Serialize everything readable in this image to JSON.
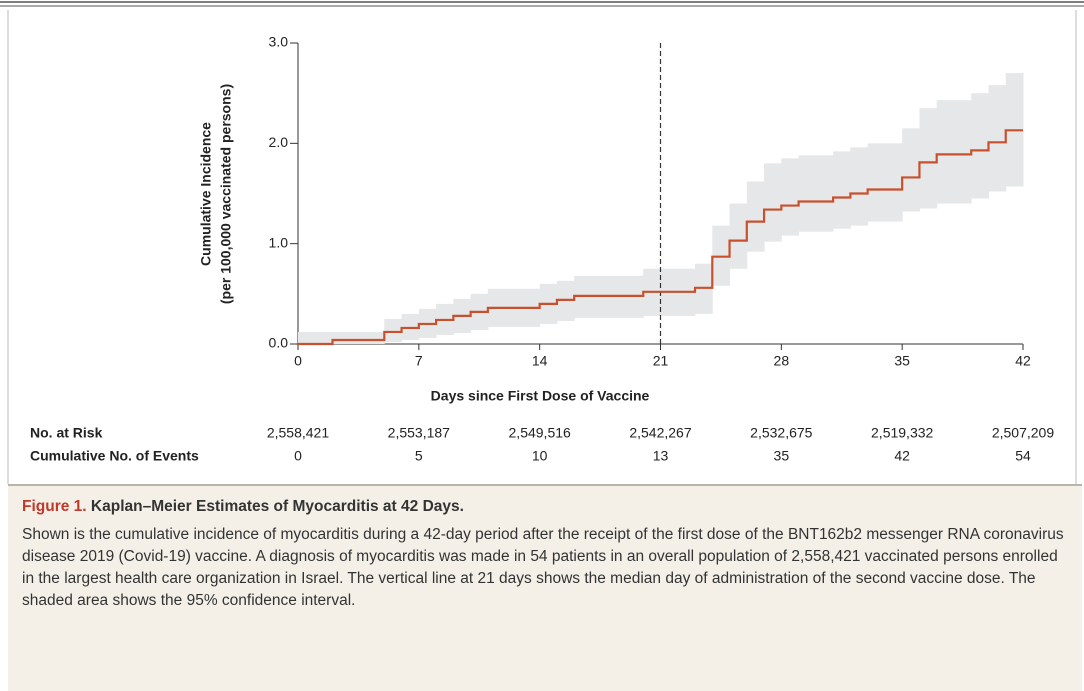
{
  "chart_data": {
    "type": "step",
    "x": [
      0,
      2,
      5,
      6,
      7,
      8,
      9,
      10,
      11,
      14,
      15,
      16,
      20,
      23,
      24,
      25,
      26,
      27,
      28,
      29,
      31,
      32,
      33,
      35,
      36,
      37,
      39,
      40,
      41
    ],
    "values": [
      0,
      0.04,
      0.12,
      0.16,
      0.2,
      0.24,
      0.28,
      0.32,
      0.36,
      0.4,
      0.44,
      0.48,
      0.52,
      0.56,
      0.87,
      1.03,
      1.22,
      1.34,
      1.38,
      1.42,
      1.46,
      1.5,
      1.54,
      1.66,
      1.81,
      1.89,
      1.93,
      2.01,
      2.13
    ],
    "ci_upper": [
      0.12,
      0.12,
      0.25,
      0.3,
      0.35,
      0.4,
      0.45,
      0.5,
      0.55,
      0.6,
      0.63,
      0.68,
      0.75,
      0.8,
      1.18,
      1.4,
      1.62,
      1.8,
      1.85,
      1.88,
      1.92,
      1.96,
      2.0,
      2.15,
      2.35,
      2.43,
      2.5,
      2.58,
      2.7
    ],
    "ci_lower": [
      0,
      0,
      0.02,
      0.04,
      0.06,
      0.09,
      0.11,
      0.14,
      0.17,
      0.2,
      0.23,
      0.26,
      0.28,
      0.3,
      0.58,
      0.75,
      0.92,
      1.02,
      1.08,
      1.12,
      1.15,
      1.18,
      1.22,
      1.32,
      1.35,
      1.4,
      1.45,
      1.52,
      1.57
    ],
    "color": "#c8502d",
    "band_color": "#e6e7e9",
    "reference_x": 21,
    "xlim": [
      0,
      42
    ],
    "xticks": [
      0,
      7,
      14,
      21,
      28,
      35,
      42
    ],
    "ylim": [
      0,
      3
    ],
    "yticks": [
      {
        "value": 0,
        "label": "0.0"
      },
      {
        "value": 1,
        "label": "1.0"
      },
      {
        "value": 2,
        "label": "2.0"
      },
      {
        "value": 3,
        "label": "3.0"
      }
    ],
    "xlabel": "Days since First Dose of Vaccine",
    "ylabel": [
      "Cumulative Incidence",
      "(per 100,000 vaccinated persons)"
    ],
    "risk_table": [
      {
        "label": "No. at Risk",
        "values": [
          "2,558,421",
          "2,553,187",
          "2,549,516",
          "2,542,267",
          "2,532,675",
          "2,519,332",
          "2,507,209"
        ]
      },
      {
        "label": "Cumulative No. of Events",
        "values": [
          "0",
          "5",
          "10",
          "13",
          "35",
          "42",
          "54"
        ]
      }
    ]
  },
  "caption": {
    "label": "Figure 1.",
    "title": "Kaplan–Meier Estimates of Myocarditis at 42 Days.",
    "text": "Shown is the cumulative incidence of myocarditis during a 42-day period after the receipt of the first dose of the BNT162b2 messenger RNA coronavirus disease 2019 (Covid-19) vaccine. A diagnosis of myocarditis was made in 54 patients in an overall population of 2,558,421 vaccinated persons enrolled in the largest health care organization in Israel. The vertical line at 21 days shows the median day of administration of the second vaccine dose. The shaded area shows the 95% confidence interval."
  }
}
